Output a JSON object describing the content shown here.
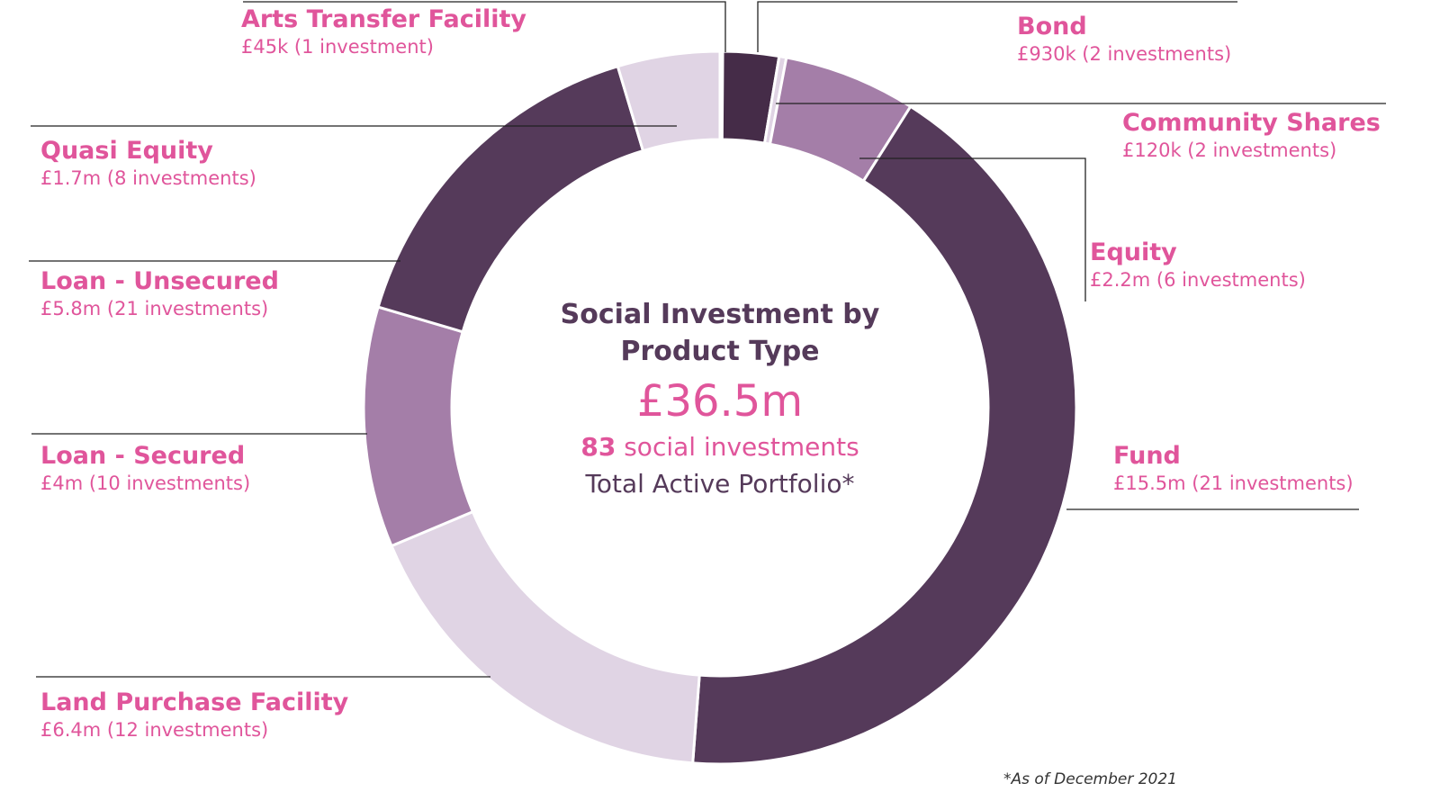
{
  "chart_data": {
    "type": "pie",
    "variant": "donut",
    "title": "Social Investment by Product Type",
    "total": "£36.5m",
    "count_number": "83",
    "count_text": "social investments",
    "subtitle": "Total Active Portfolio*",
    "footnote": "*As of December 2021",
    "slices": [
      {
        "name": "Arts Transfer Facility",
        "value": 0.045,
        "label": "£45k (1 investment)",
        "color": "#e8dfea"
      },
      {
        "name": "Bond",
        "value": 0.93,
        "label": "£930k (2 investments)",
        "color": "#452c48"
      },
      {
        "name": "Community Shares",
        "value": 0.12,
        "label": "£120k (2 investments)",
        "color": "#e0d4e4"
      },
      {
        "name": "Equity",
        "value": 2.2,
        "label": "£2.2m (6 investments)",
        "color": "#a47ea8"
      },
      {
        "name": "Fund",
        "value": 15.5,
        "label": "£15.5m (21 investments)",
        "color": "#553a5a"
      },
      {
        "name": "Land Purchase Facility",
        "value": 6.4,
        "label": "£6.4m (12 investments)",
        "color": "#e0d4e4"
      },
      {
        "name": "Loan - Secured",
        "value": 4,
        "label": "£4m (10 investments)",
        "color": "#a47ea8"
      },
      {
        "name": "Loan - Unsecured",
        "value": 5.8,
        "label": "£5.8m (21 investments)",
        "color": "#553a5a"
      },
      {
        "name": "Quasi Equity",
        "value": 1.7,
        "label": "£1.7m (8 investments)",
        "color": "#e0d4e4"
      }
    ]
  }
}
